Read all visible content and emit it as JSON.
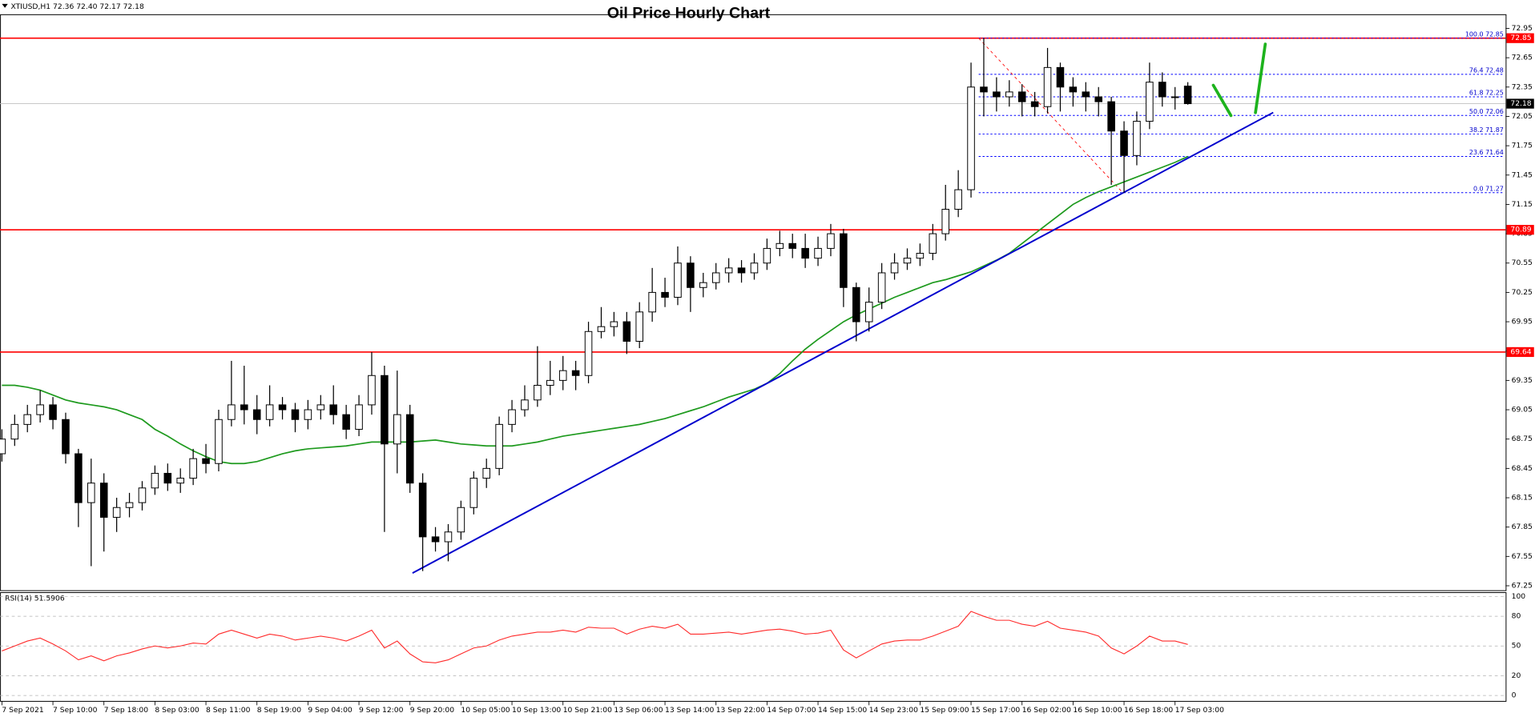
{
  "chart_data": {
    "type": "candlestick",
    "title": "Oil Price Hourly Chart",
    "header": "XTIUSD,H1  72.36 72.40 72.17 72.18",
    "xlim": [
      -0.15,
      117.92
    ],
    "xticks": [
      {
        "value": 0,
        "label": "7 Sep 2021"
      },
      {
        "value": 4,
        "label": "7 Sep 10:00"
      },
      {
        "value": 8,
        "label": "7 Sep 18:00"
      },
      {
        "value": 12,
        "label": "8 Sep 03:00"
      },
      {
        "value": 16,
        "label": "8 Sep 11:00"
      },
      {
        "value": 20,
        "label": "8 Sep 19:00"
      },
      {
        "value": 24,
        "label": "9 Sep 04:00"
      },
      {
        "value": 28,
        "label": "9 Sep 12:00"
      },
      {
        "value": 32,
        "label": "9 Sep 20:00"
      },
      {
        "value": 36,
        "label": "10 Sep 05:00"
      },
      {
        "value": 40,
        "label": "10 Sep 13:00"
      },
      {
        "value": 44,
        "label": "10 Sep 21:00"
      },
      {
        "value": 48,
        "label": "13 Sep 06:00"
      },
      {
        "value": 52,
        "label": "13 Sep 14:00"
      },
      {
        "value": 56,
        "label": "13 Sep 22:00"
      },
      {
        "value": 60,
        "label": "14 Sep 07:00"
      },
      {
        "value": 64,
        "label": "14 Sep 15:00"
      },
      {
        "value": 68,
        "label": "14 Sep 23:00"
      },
      {
        "value": 72,
        "label": "15 Sep 09:00"
      },
      {
        "value": 76,
        "label": "15 Sep 17:00"
      },
      {
        "value": 80,
        "label": "16 Sep 02:00"
      },
      {
        "value": 84,
        "label": "16 Sep 10:00"
      },
      {
        "value": 88,
        "label": "16 Sep 18:00"
      },
      {
        "value": 92,
        "label": "17 Sep 03:00"
      }
    ],
    "ylim": [
      67.2,
      73.09
    ],
    "yticks": [
      72.95,
      72.65,
      72.35,
      72.05,
      71.75,
      71.45,
      71.15,
      70.85,
      70.55,
      70.25,
      69.95,
      69.65,
      69.35,
      69.05,
      68.75,
      68.45,
      68.15,
      67.85,
      67.55,
      67.25
    ],
    "up_color": "#ffffff",
    "down_color": "#000000",
    "open": [
      68.6,
      68.75,
      68.9,
      69.0,
      69.1,
      68.95,
      68.6,
      68.1,
      68.3,
      67.95,
      68.05,
      68.1,
      68.25,
      68.4,
      68.3,
      68.35,
      68.55,
      68.5,
      68.95,
      69.1,
      69.05,
      68.95,
      69.1,
      69.05,
      68.95,
      69.05,
      69.1,
      69.0,
      68.85,
      69.1,
      69.4,
      68.7,
      69.0,
      68.3,
      67.75,
      67.7,
      67.8,
      68.05,
      68.35,
      68.45,
      68.9,
      69.05,
      69.15,
      69.3,
      69.35,
      69.45,
      69.4,
      69.85,
      69.9,
      69.95,
      69.75,
      70.05,
      70.25,
      70.2,
      70.55,
      70.3,
      70.35,
      70.45,
      70.5,
      70.45,
      70.55,
      70.7,
      70.75,
      70.7,
      70.6,
      70.7,
      70.85,
      70.3,
      69.95,
      70.15,
      70.45,
      70.55,
      70.6,
      70.65,
      70.85,
      71.1,
      71.3,
      72.35,
      72.3,
      72.25,
      72.3,
      72.2,
      72.15,
      72.55,
      72.35,
      72.3,
      72.25,
      72.2,
      71.9,
      71.65,
      72.0,
      72.4,
      72.25,
      72.36
    ],
    "high": [
      68.85,
      69.0,
      69.1,
      69.25,
      69.18,
      69.02,
      68.65,
      68.55,
      68.4,
      68.15,
      68.2,
      68.32,
      68.48,
      68.5,
      68.45,
      68.65,
      68.7,
      69.05,
      69.55,
      69.5,
      69.2,
      69.3,
      69.18,
      69.12,
      69.15,
      69.2,
      69.3,
      69.1,
      69.2,
      69.64,
      69.5,
      69.45,
      69.1,
      68.4,
      67.85,
      67.88,
      68.12,
      68.42,
      68.55,
      68.98,
      69.15,
      69.3,
      69.7,
      69.55,
      69.6,
      69.55,
      69.95,
      70.1,
      70.05,
      70.05,
      70.15,
      70.5,
      70.4,
      70.72,
      70.62,
      70.45,
      70.55,
      70.6,
      70.58,
      70.65,
      70.8,
      70.88,
      70.85,
      70.85,
      70.82,
      70.95,
      70.9,
      70.35,
      70.3,
      70.55,
      70.65,
      70.7,
      70.75,
      70.95,
      71.35,
      71.5,
      72.6,
      72.85,
      72.45,
      72.42,
      72.38,
      72.3,
      72.75,
      72.6,
      72.45,
      72.4,
      72.35,
      72.25,
      72.0,
      72.1,
      72.6,
      72.5,
      72.35,
      72.4
    ],
    "low": [
      68.52,
      68.68,
      68.82,
      68.92,
      68.85,
      68.5,
      67.85,
      67.45,
      67.6,
      67.8,
      67.95,
      68.02,
      68.18,
      68.22,
      68.2,
      68.28,
      68.4,
      68.42,
      68.88,
      68.9,
      68.8,
      68.88,
      68.95,
      68.82,
      68.85,
      68.95,
      68.9,
      68.75,
      68.78,
      69.0,
      67.8,
      68.4,
      68.2,
      67.4,
      67.6,
      67.5,
      67.72,
      67.98,
      68.25,
      68.38,
      68.82,
      68.98,
      69.08,
      69.2,
      69.25,
      69.25,
      69.32,
      69.78,
      69.8,
      69.62,
      69.68,
      69.95,
      70.1,
      70.12,
      70.05,
      70.2,
      70.28,
      70.35,
      70.35,
      70.38,
      70.48,
      70.62,
      70.6,
      70.5,
      70.52,
      70.62,
      70.1,
      69.75,
      69.85,
      70.08,
      70.38,
      70.48,
      70.52,
      70.58,
      70.78,
      71.02,
      71.22,
      72.05,
      72.1,
      72.15,
      72.05,
      72.05,
      72.08,
      72.1,
      72.15,
      72.1,
      72.05,
      71.35,
      71.27,
      71.55,
      71.92,
      72.15,
      72.12,
      72.17
    ],
    "close": [
      68.75,
      68.9,
      69.0,
      69.1,
      68.95,
      68.6,
      68.1,
      68.3,
      67.95,
      68.05,
      68.1,
      68.25,
      68.4,
      68.3,
      68.35,
      68.55,
      68.5,
      68.95,
      69.1,
      69.05,
      68.95,
      69.1,
      69.05,
      68.95,
      69.05,
      69.1,
      69.0,
      68.85,
      69.1,
      69.4,
      68.7,
      69.0,
      68.3,
      67.75,
      67.7,
      67.8,
      68.05,
      68.35,
      68.45,
      68.9,
      69.05,
      69.15,
      69.3,
      69.35,
      69.45,
      69.4,
      69.85,
      69.9,
      69.95,
      69.75,
      70.05,
      70.25,
      70.2,
      70.55,
      70.3,
      70.35,
      70.45,
      70.5,
      70.45,
      70.55,
      70.7,
      70.75,
      70.7,
      70.6,
      70.7,
      70.85,
      70.3,
      69.95,
      70.15,
      70.45,
      70.55,
      70.6,
      70.65,
      70.85,
      71.1,
      71.3,
      72.35,
      72.3,
      72.25,
      72.3,
      72.2,
      72.15,
      72.55,
      72.35,
      72.3,
      72.25,
      72.2,
      71.9,
      71.65,
      72.0,
      72.4,
      72.25,
      72.25,
      72.18
    ],
    "ma": {
      "color": "#1e9a1e",
      "values": [
        69.3,
        69.3,
        69.28,
        69.25,
        69.2,
        69.15,
        69.12,
        69.1,
        69.08,
        69.05,
        69.0,
        68.95,
        68.85,
        68.78,
        68.7,
        68.63,
        68.57,
        68.52,
        68.5,
        68.5,
        68.52,
        68.56,
        68.6,
        68.63,
        68.65,
        68.66,
        68.67,
        68.68,
        68.7,
        68.72,
        68.72,
        68.72,
        68.72,
        68.73,
        68.74,
        68.72,
        68.7,
        68.69,
        68.68,
        68.68,
        68.68,
        68.7,
        68.72,
        68.75,
        68.78,
        68.8,
        68.82,
        68.84,
        68.86,
        68.88,
        68.9,
        68.93,
        68.96,
        69.0,
        69.04,
        69.08,
        69.13,
        69.18,
        69.22,
        69.26,
        69.32,
        69.42,
        69.55,
        69.67,
        69.77,
        69.86,
        69.95,
        70.02,
        70.08,
        70.14,
        70.2,
        70.25,
        70.3,
        70.35,
        70.38,
        70.42,
        70.46,
        70.52,
        70.58,
        70.65,
        70.75,
        70.85,
        70.95,
        71.05,
        71.15,
        71.22,
        71.28,
        71.33,
        71.38,
        71.43,
        71.48,
        71.53,
        71.58,
        71.64
      ]
    },
    "trendline": {
      "color": "#0000cd",
      "x": [
        32.2,
        99.7
      ],
      "y": [
        67.38,
        72.09
      ]
    },
    "hlines": [
      {
        "value": 72.85,
        "color": "#ff0000"
      },
      {
        "value": 70.89,
        "color": "#ff0000"
      },
      {
        "value": 69.64,
        "color": "#ff0000"
      }
    ],
    "last_price": 72.18,
    "fib": {
      "color": "#0000ff",
      "x": [
        76.6,
        87.9
      ],
      "y": [
        72.85,
        71.27
      ],
      "levels": [
        {
          "value": 72.85,
          "label": "100.0 72.85"
        },
        {
          "value": 72.48,
          "label": "76.4 72.48"
        },
        {
          "value": 72.25,
          "label": "61.8 72.25"
        },
        {
          "value": 72.06,
          "label": "50.0 72.06"
        },
        {
          "value": 71.87,
          "label": "38.2 71.87"
        },
        {
          "value": 71.64,
          "label": "23.6 71.64"
        },
        {
          "value": 71.27,
          "label": "0.0 71.27"
        }
      ]
    },
    "rsi": {
      "label": "RSI(14) 51.5906",
      "color": "#ff2a2a",
      "ylim": [
        0,
        100
      ],
      "yticks": [
        100,
        80,
        50,
        20,
        0
      ],
      "values": [
        45,
        50,
        55,
        58,
        52,
        45,
        36,
        40,
        35,
        40,
        43,
        47,
        50,
        48,
        50,
        53,
        52,
        62,
        66,
        62,
        58,
        62,
        60,
        56,
        58,
        60,
        58,
        55,
        60,
        66,
        48,
        55,
        42,
        34,
        33,
        36,
        42,
        48,
        50,
        56,
        60,
        62,
        64,
        64,
        66,
        64,
        69,
        68,
        68,
        62,
        67,
        70,
        68,
        72,
        62,
        62,
        63,
        64,
        62,
        64,
        66,
        67,
        65,
        62,
        63,
        66,
        46,
        38,
        45,
        52,
        55,
        56,
        56,
        60,
        65,
        70,
        85,
        80,
        76,
        76,
        72,
        70,
        75,
        68,
        66,
        64,
        60,
        48,
        42,
        50,
        60,
        55,
        55,
        51.59
      ]
    }
  }
}
